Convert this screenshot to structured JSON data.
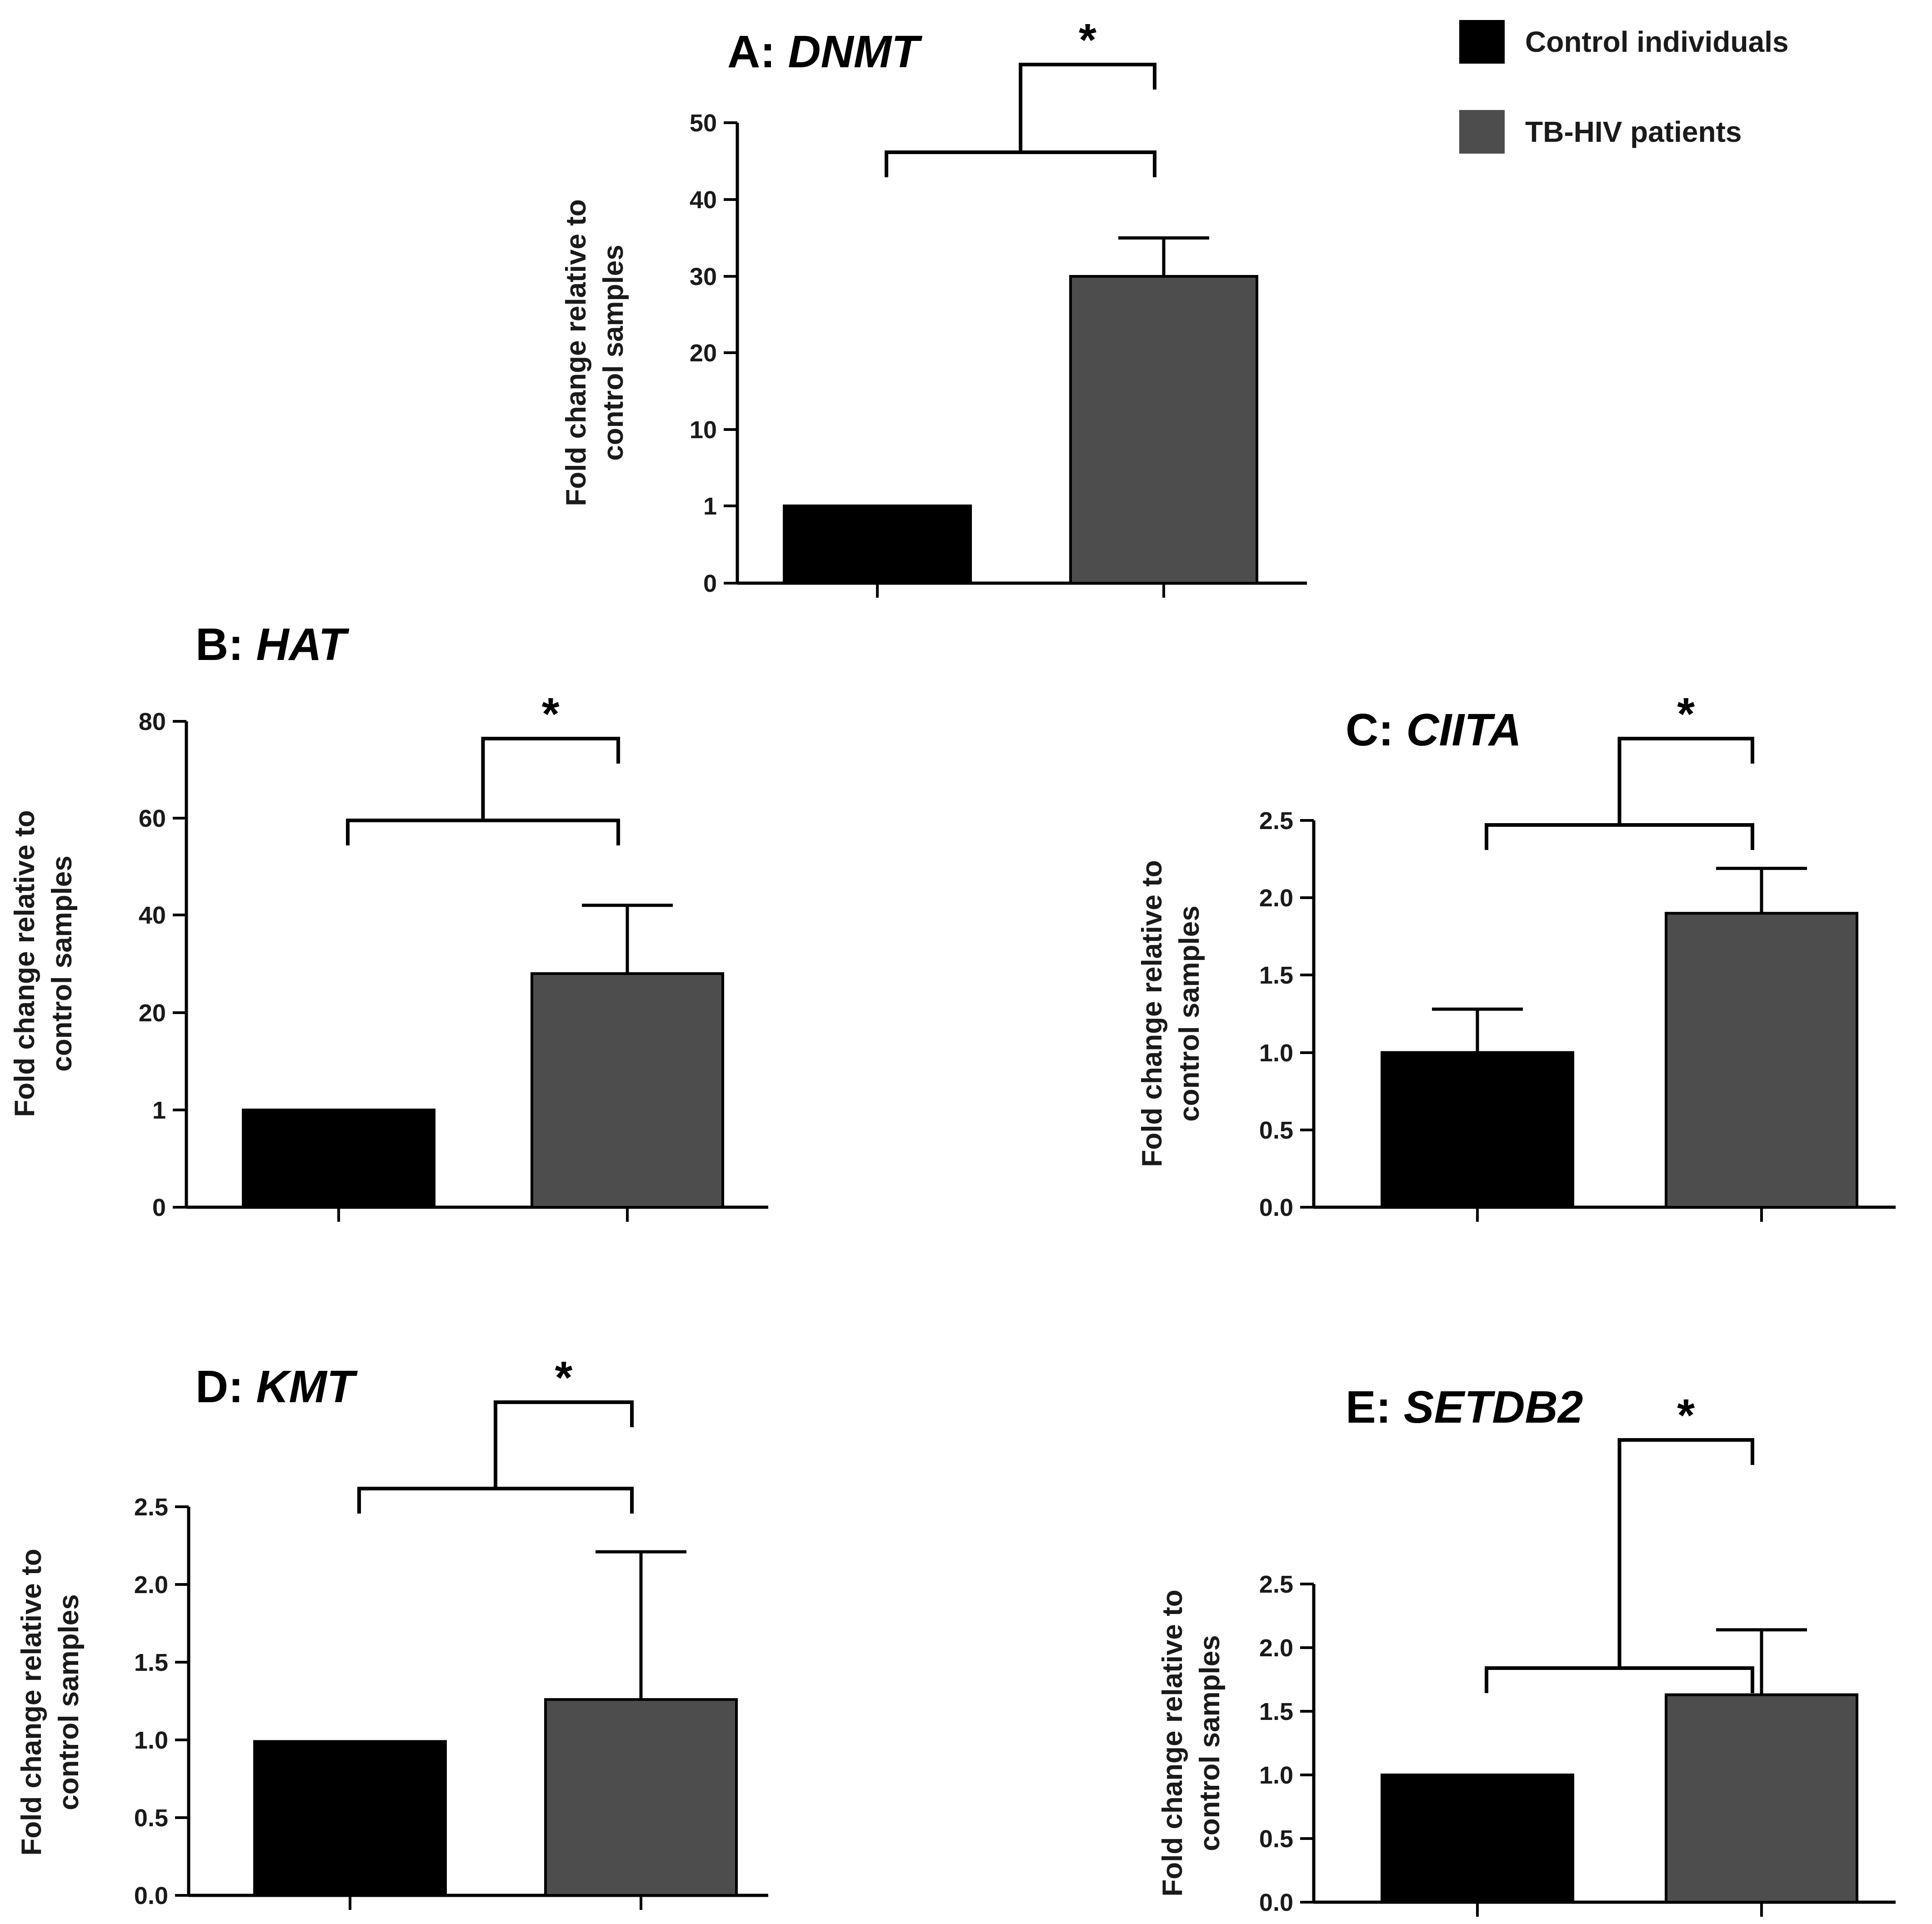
{
  "legend": {
    "entries": [
      {
        "label": "Control individuals",
        "color": "#000000"
      },
      {
        "label": "TB-HIV patients",
        "color": "#4d4d4d"
      }
    ]
  },
  "y_axis_label": [
    "Fold change relative to",
    "control samples"
  ],
  "significance_marker": "*",
  "chart_data": [
    {
      "id": "A",
      "type": "bar",
      "title_prefix": "A: ",
      "title_gene": "DNMT",
      "categories": [
        "Control individuals",
        "TB-HIV patients"
      ],
      "values": [
        1,
        30
      ],
      "errors": [
        0,
        5
      ],
      "ylim": [
        0,
        50
      ],
      "yticks": [
        "0",
        "1",
        "10",
        "20",
        "30",
        "40",
        "50"
      ],
      "scale": "split-log",
      "colors": [
        "#000000",
        "#4d4d4d"
      ]
    },
    {
      "id": "B",
      "type": "bar",
      "title_prefix": "B: ",
      "title_gene": "HAT",
      "categories": [
        "Control individuals",
        "TB-HIV patients"
      ],
      "values": [
        1,
        28
      ],
      "errors": [
        0,
        14
      ],
      "ylim": [
        0,
        80
      ],
      "yticks": [
        "0",
        "1",
        "20",
        "40",
        "60",
        "80"
      ],
      "scale": "split-log",
      "colors": [
        "#000000",
        "#4d4d4d"
      ]
    },
    {
      "id": "C",
      "type": "bar",
      "title_prefix": "C: ",
      "title_gene": "CIITA",
      "categories": [
        "Control individuals",
        "TB-HIV patients"
      ],
      "values": [
        1.0,
        1.9
      ],
      "errors": [
        0.28,
        0.29
      ],
      "ylim": [
        0,
        2.5
      ],
      "yticks": [
        "0.0",
        "0.5",
        "1.0",
        "1.5",
        "2.0",
        "2.5"
      ],
      "scale": "linear",
      "colors": [
        "#000000",
        "#4d4d4d"
      ]
    },
    {
      "id": "D",
      "type": "bar",
      "title_prefix": "D: ",
      "title_gene": "KMT",
      "categories": [
        "Control individuals",
        "TB-HIV patients"
      ],
      "values": [
        0.99,
        1.26
      ],
      "errors": [
        0,
        0.95
      ],
      "ylim": [
        0,
        2.5
      ],
      "yticks": [
        "0.0",
        "0.5",
        "1.0",
        "1.5",
        "2.0",
        "2.5"
      ],
      "scale": "linear",
      "colors": [
        "#000000",
        "#4d4d4d"
      ]
    },
    {
      "id": "E",
      "type": "bar",
      "title_prefix": "E: ",
      "title_gene": "SETDB2",
      "categories": [
        "Control individuals",
        "TB-HIV patients"
      ],
      "values": [
        1.0,
        1.63
      ],
      "errors": [
        0,
        0.51
      ],
      "ylim": [
        0,
        2.5
      ],
      "yticks": [
        "0.0",
        "0.5",
        "1.0",
        "1.5",
        "2.0",
        "2.5"
      ],
      "scale": "linear",
      "colors": [
        "#000000",
        "#4d4d4d"
      ]
    }
  ]
}
